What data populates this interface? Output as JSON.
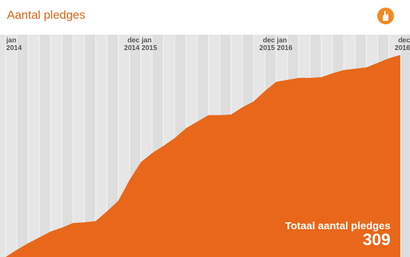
{
  "chart_data": {
    "type": "area",
    "title": "Aantal pledges",
    "categories": [
      "jan 2014",
      null,
      null,
      null,
      null,
      null,
      null,
      null,
      null,
      null,
      null,
      "dec 2014",
      "jan 2015",
      null,
      null,
      null,
      null,
      null,
      null,
      null,
      null,
      null,
      null,
      "dec 2015",
      "jan 2016",
      null,
      null,
      null,
      null,
      null,
      null,
      null,
      null,
      null,
      null,
      "dec 2016"
    ],
    "values": [
      0,
      11,
      21,
      30,
      39,
      45,
      52,
      53,
      55,
      70,
      86,
      118,
      145,
      159,
      170,
      182,
      197,
      207,
      217,
      217,
      218,
      229,
      238,
      254,
      268,
      271,
      274,
      274,
      275,
      281,
      286,
      288,
      290,
      297,
      304,
      309
    ],
    "color": "#e8671a",
    "ylim": [
      0,
      340
    ],
    "total_label": "Totaal aantal pledges",
    "total": 309
  }
}
